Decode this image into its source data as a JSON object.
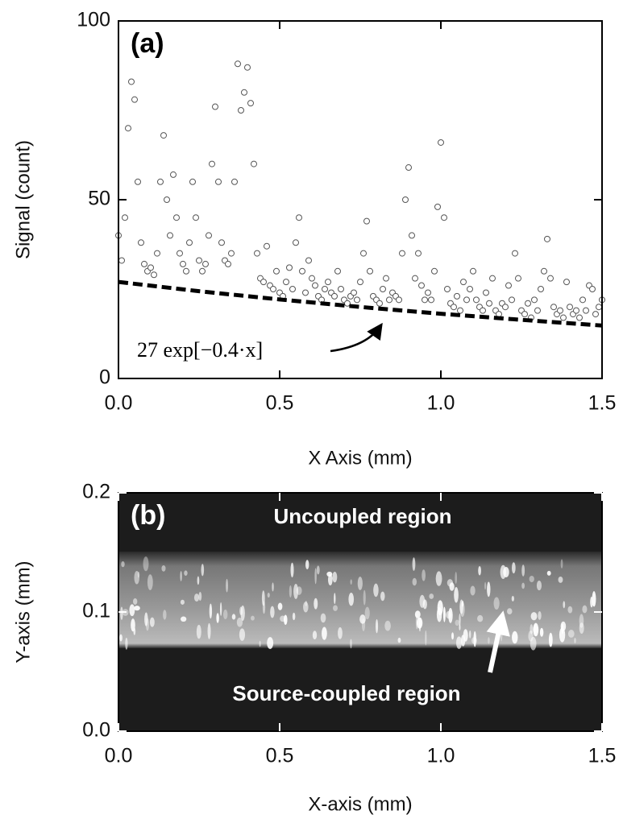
{
  "chart_data": [
    {
      "type": "scatter",
      "panel_label": "(a)",
      "xlabel": "X Axis (mm)",
      "ylabel": "Signal (count)",
      "xlim": [
        0,
        1.5
      ],
      "ylim": [
        0,
        100
      ],
      "xticks": [
        {
          "value": 0,
          "label": "0.0"
        },
        {
          "value": 0.5,
          "label": "0.5"
        },
        {
          "value": 1,
          "label": "1.0"
        },
        {
          "value": 1.5,
          "label": "1.5"
        }
      ],
      "yticks": [
        0,
        50,
        100
      ],
      "series": [
        {
          "style": "open-circle",
          "color": "#555555",
          "x": [
            0,
            0.01,
            0.02,
            0.03,
            0.04,
            0.05,
            0.06,
            0.07,
            0.08,
            0.09,
            0.1,
            0.11,
            0.12,
            0.13,
            0.14,
            0.15,
            0.16,
            0.17,
            0.18,
            0.19,
            0.2,
            0.21,
            0.22,
            0.23,
            0.24,
            0.25,
            0.26,
            0.27,
            0.28,
            0.29,
            0.3,
            0.31,
            0.32,
            0.33,
            0.34,
            0.35,
            0.36,
            0.37,
            0.38,
            0.39,
            0.4,
            0.41,
            0.42,
            0.43,
            0.44,
            0.45,
            0.46,
            0.47,
            0.48,
            0.49,
            0.5,
            0.51,
            0.52,
            0.53,
            0.54,
            0.55,
            0.56,
            0.57,
            0.58,
            0.59,
            0.6,
            0.61,
            0.62,
            0.63,
            0.64,
            0.65,
            0.66,
            0.67,
            0.68,
            0.69,
            0.7,
            0.71,
            0.72,
            0.73,
            0.74,
            0.75,
            0.76,
            0.77,
            0.78,
            0.79,
            0.8,
            0.81,
            0.82,
            0.83,
            0.84,
            0.85,
            0.86,
            0.87,
            0.88,
            0.89,
            0.9,
            0.91,
            0.92,
            0.93,
            0.94,
            0.95,
            0.96,
            0.97,
            0.98,
            0.99,
            1,
            1.01,
            1.02,
            1.03,
            1.04,
            1.05,
            1.06,
            1.07,
            1.08,
            1.09,
            1.1,
            1.11,
            1.12,
            1.13,
            1.14,
            1.15,
            1.16,
            1.17,
            1.18,
            1.19,
            1.2,
            1.21,
            1.22,
            1.23,
            1.24,
            1.25,
            1.26,
            1.27,
            1.28,
            1.29,
            1.3,
            1.31,
            1.32,
            1.33,
            1.34,
            1.35,
            1.36,
            1.37,
            1.38,
            1.39,
            1.4,
            1.41,
            1.42,
            1.43,
            1.44,
            1.45,
            1.46,
            1.47,
            1.48,
            1.49,
            1.5
          ],
          "values": [
            40,
            33,
            45,
            70,
            83,
            78,
            55,
            38,
            32,
            30,
            31,
            29,
            35,
            55,
            68,
            50,
            40,
            57,
            45,
            35,
            32,
            30,
            38,
            55,
            45,
            33,
            30,
            32,
            40,
            60,
            76,
            55,
            38,
            33,
            32,
            35,
            55,
            88,
            75,
            80,
            87,
            77,
            60,
            35,
            28,
            27,
            37,
            26,
            25,
            30,
            24,
            23,
            27,
            31,
            25,
            38,
            45,
            30,
            24,
            33,
            28,
            26,
            23,
            22,
            25,
            27,
            24,
            23,
            30,
            25,
            22,
            21,
            23,
            24,
            22,
            27,
            35,
            44,
            30,
            23,
            22,
            21,
            25,
            28,
            22,
            24,
            23,
            22,
            35,
            50,
            59,
            40,
            28,
            35,
            26,
            22,
            24,
            22,
            30,
            48,
            66,
            45,
            25,
            21,
            20,
            23,
            19,
            27,
            22,
            25,
            30,
            22,
            20,
            19,
            24,
            21,
            28,
            19,
            18,
            21,
            20,
            26,
            22,
            35,
            28,
            19,
            18,
            21,
            17,
            22,
            19,
            25,
            30,
            39,
            28,
            20,
            18,
            19,
            17,
            27,
            20,
            18,
            19,
            17,
            22,
            19,
            26,
            25,
            18,
            20,
            22
          ]
        },
        {
          "style": "dashed-line",
          "color": "#000000",
          "x": [
            0,
            0.25,
            0.5,
            0.75,
            1,
            1.25,
            1.5
          ],
          "values": [
            27,
            24.4,
            22.1,
            20,
            18.1,
            16.4,
            14.8
          ]
        }
      ],
      "annotation": "27 exp[−0.4·x]"
    },
    {
      "type": "image",
      "panel_label": "(b)",
      "xlabel": "X-axis (mm)",
      "ylabel": "Y-axis (mm)",
      "xlim": [
        0,
        1.5
      ],
      "ylim": [
        0,
        0.2
      ],
      "xticks": [
        {
          "value": 0,
          "label": "0.0"
        },
        {
          "value": 0.5,
          "label": "0.5"
        },
        {
          "value": 1,
          "label": "1.0"
        },
        {
          "value": 1.5,
          "label": "1.5"
        }
      ],
      "yticks": [
        {
          "value": 0,
          "label": "0.0"
        },
        {
          "value": 0.1,
          "label": "0.1"
        },
        {
          "value": 0.2,
          "label": "0.2"
        }
      ],
      "annotations": [
        "Uncoupled region",
        "Source-coupled region"
      ]
    }
  ]
}
